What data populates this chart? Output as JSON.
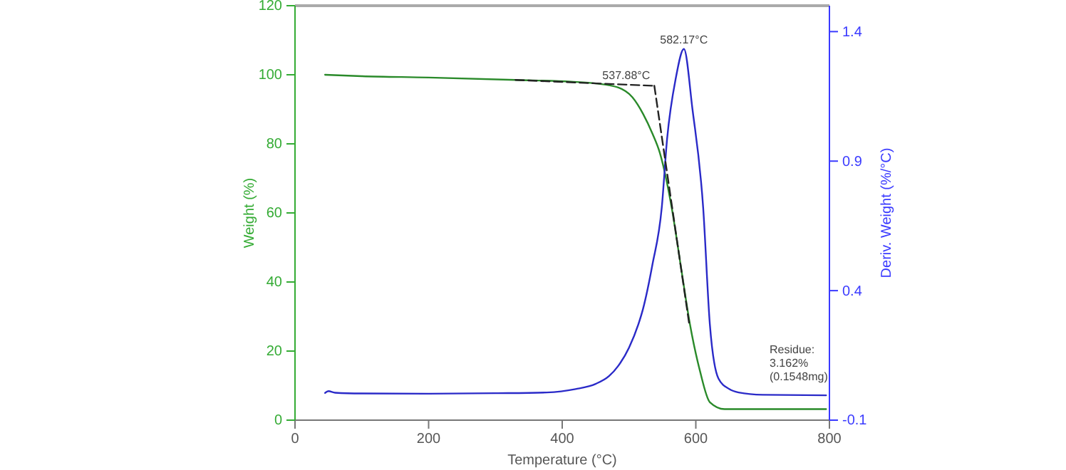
{
  "chart_data": {
    "type": "line",
    "xlabel": "Temperature (°C)",
    "ylabel": "Weight (%)",
    "y2label": "Deriv. Weight (%/°C)",
    "xlim": [
      0,
      800
    ],
    "xticks": [
      0,
      200,
      400,
      600,
      800
    ],
    "ylim": [
      0,
      120
    ],
    "yticks": [
      0,
      20,
      40,
      60,
      80,
      100,
      120
    ],
    "y2lim": [
      -0.1,
      1.5
    ],
    "y2ticks": [
      -0.1,
      0.4,
      0.9,
      1.4
    ],
    "series": [
      {
        "color": "#2a8a2a",
        "x": [
          45,
          100,
          200,
          330,
          413,
          450,
          484,
          505,
          521,
          535,
          546,
          564,
          578,
          591,
          606,
          621,
          643,
          680,
          795
        ],
        "values": [
          100,
          99.6,
          99.2,
          98.5,
          98,
          97.5,
          96.3,
          93.5,
          88.7,
          83,
          77.5,
          61.4,
          44,
          28,
          14.4,
          5.2,
          3.2,
          3.2,
          3.2
        ]
      },
      {
        "color": "#2a2ac8",
        "axis": "y2",
        "x": [
          45,
          50,
          60,
          100,
          200,
          300,
          377,
          420,
          450,
          470,
          484,
          500,
          514,
          521,
          535,
          549,
          557,
          570,
          582.17,
          595,
          611,
          621,
          634,
          650,
          664,
          700,
          795
        ],
        "values": [
          0.005,
          0.012,
          0.006,
          0.003,
          0.002,
          0.004,
          0.007,
          0.02,
          0.04,
          0.07,
          0.11,
          0.18,
          0.27,
          0.33,
          0.5,
          0.72,
          0.986,
          1.22,
          1.333,
          1.1,
          0.72,
          0.27,
          0.06,
          0.02,
          0.007,
          -0.002,
          -0.004
        ]
      },
      {
        "color": "#222222",
        "line_style": "dashed",
        "x": [
          330,
          537.88
        ],
        "values": [
          98.5,
          96.8
        ]
      },
      {
        "color": "#222222",
        "line_style": "dashed",
        "x": [
          537.88,
          590
        ],
        "values": [
          96.8,
          28
        ]
      }
    ],
    "annotations": [
      {
        "text": "537.88°C",
        "x": 537.88,
        "y": 96.8
      },
      {
        "text": "582.17°C",
        "x": 582.17,
        "y": 107
      },
      "Residue:\n3.162%\n(0.1548mg)"
    ]
  }
}
